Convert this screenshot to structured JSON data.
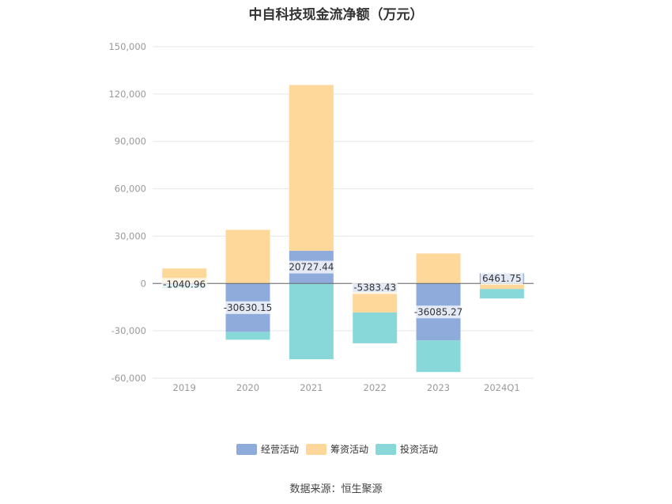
{
  "title": "中自科技现金流净额（万元）",
  "source": "数据来源：恒生聚源",
  "chart_data": {
    "type": "bar",
    "stacked": true,
    "categories": [
      "2019",
      "2020",
      "2021",
      "2022",
      "2023",
      "2024Q1"
    ],
    "series": [
      {
        "name": "经营活动",
        "color": "#8fabdc",
        "values": [
          -1040.96,
          -30630.15,
          20727.44,
          -5383.43,
          -36085.27,
          6461.75
        ]
      },
      {
        "name": "筹资活动",
        "color": "#fed89b",
        "values": [
          9500,
          34000,
          105000,
          -13000,
          19000,
          -3500
        ]
      },
      {
        "name": "投资活动",
        "color": "#88d7d9",
        "values": [
          -2000,
          -5000,
          -48000,
          -19500,
          -20000,
          -6000
        ]
      }
    ],
    "data_labels": [
      {
        "category": "2019",
        "series": "经营活动",
        "text": "-1040.96"
      },
      {
        "category": "2020",
        "series": "经营活动",
        "text": "-30630.15"
      },
      {
        "category": "2021",
        "series": "经营活动",
        "text": "20727.44"
      },
      {
        "category": "2022",
        "series": "经营活动",
        "text": "-5383.43"
      },
      {
        "category": "2023",
        "series": "经营活动",
        "text": "-36085.27"
      },
      {
        "category": "2024Q1",
        "series": "经营活动",
        "text": "6461.75"
      }
    ],
    "y_ticks": [
      "150,000",
      "120,000",
      "90,000",
      "60,000",
      "30,000",
      "0",
      "-30,000",
      "-60,000"
    ],
    "ylim": [
      -60000,
      150000
    ],
    "grid": true,
    "legend_position": "bottom"
  }
}
